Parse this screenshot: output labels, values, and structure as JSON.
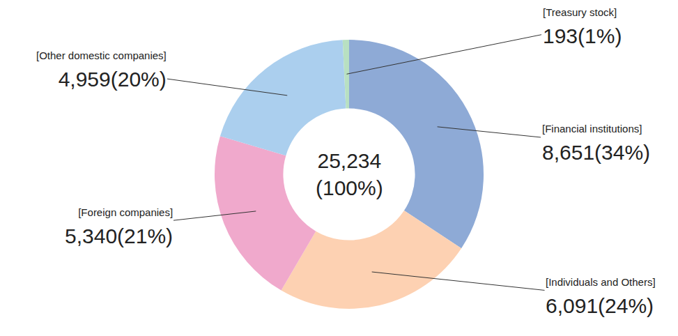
{
  "chart_data": {
    "type": "pie",
    "categories": [
      "[Financial institutions]",
      "[Individuals and Others]",
      "[Foreign companies]",
      "[Other domestic companies]",
      "[Treasury stock]"
    ],
    "values": [
      8651,
      6091,
      5340,
      4959,
      193
    ],
    "value_labels": [
      "8,651(34%)",
      "6,091(24%)",
      "5,340(21%)",
      "4,959(20%)",
      "193(1%)"
    ],
    "colors": [
      "#8eaad6",
      "#fdd1b2",
      "#f0a9cc",
      "#abcfee",
      "#b8e0c2"
    ],
    "center_label": [
      "25,234",
      "(100%)"
    ],
    "data_labels": true
  }
}
